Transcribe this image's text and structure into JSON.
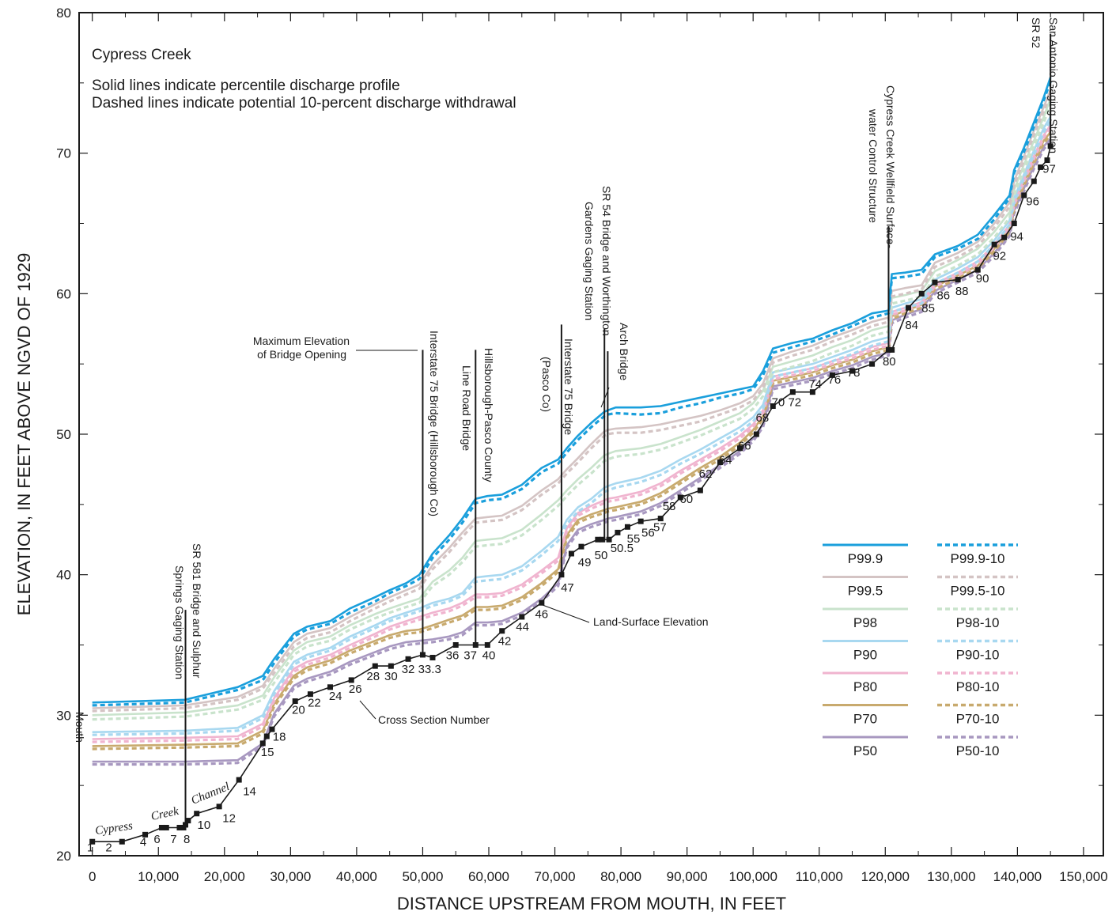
{
  "chart_data": {
    "type": "line",
    "title": "Cypress Creek",
    "notes": [
      "Solid lines indicate percentile discharge profile",
      "Dashed lines indicate potential 10-percent discharge withdrawal"
    ],
    "xlabel": "DISTANCE UPSTREAM FROM MOUTH, IN FEET",
    "ylabel": "ELEVATION, IN FEET ABOVE NGVD OF 1929",
    "xlim": [
      -2000,
      153000
    ],
    "ylim": [
      20,
      80
    ],
    "x_ticks": [
      0,
      10000,
      20000,
      30000,
      40000,
      50000,
      60000,
      70000,
      80000,
      90000,
      100000,
      110000,
      120000,
      130000,
      140000,
      150000
    ],
    "x_tick_labels": [
      "0",
      "10,000",
      "20,000",
      "30,000",
      "40,000",
      "50,000",
      "60,000",
      "70,000",
      "80,000",
      "90,000",
      "100,000",
      "110,000",
      "120,000",
      "130,000",
      "140,000",
      "150,000"
    ],
    "y_ticks": [
      20,
      30,
      40,
      50,
      60,
      70,
      80
    ],
    "y_tick_labels": [
      "20",
      "30",
      "40",
      "50",
      "60",
      "70",
      "80"
    ],
    "grid": false,
    "legend_position": "right",
    "land_surface": {
      "name": "Land-Surface Elevation",
      "x": [
        0,
        4500,
        8000,
        10500,
        11200,
        13200,
        13800,
        14100,
        14500,
        15800,
        19200,
        22200,
        25800,
        26400,
        27200,
        30700,
        33000,
        36000,
        39200,
        42800,
        45200,
        47800,
        50000,
        51500,
        55000,
        58000,
        59800,
        62000,
        65000,
        68000,
        71000,
        72500,
        74000,
        76500,
        77200,
        78200,
        79500,
        81000,
        83000,
        86000,
        89000,
        92000,
        95000,
        98000,
        100500,
        103000,
        106000,
        109000,
        112000,
        115000,
        118000,
        120500,
        121000,
        123500,
        125500,
        127500,
        131000,
        134000,
        136500,
        138000,
        139500,
        141000,
        142500,
        143500,
        144500,
        145000
      ],
      "y": [
        21,
        21,
        21.5,
        22,
        22,
        22,
        22,
        22.2,
        22.5,
        23,
        23.5,
        25.4,
        28,
        28.5,
        29,
        31,
        31.5,
        32,
        32.5,
        33.5,
        33.5,
        34,
        34.3,
        34.1,
        35,
        35,
        35,
        36,
        37,
        38,
        40,
        41.5,
        42,
        42.5,
        42.5,
        42.5,
        43,
        43.4,
        43.8,
        44,
        45.5,
        46,
        48,
        49,
        50,
        52,
        53,
        53,
        54.2,
        54.5,
        55,
        56,
        56,
        59,
        60,
        60.8,
        61,
        61.7,
        63.5,
        64,
        65,
        67,
        68,
        69,
        69.5,
        70.5
      ]
    },
    "cross_section_labels": [
      "1",
      "2",
      "4",
      "6",
      "7",
      "8",
      "10",
      "12",
      "14",
      "15",
      "18",
      "20",
      "22",
      "24",
      "26",
      "28",
      "30",
      "32",
      "33.3",
      "36",
      "37",
      "40",
      "42",
      "44",
      "46",
      "47",
      "49",
      "50",
      "50.5",
      "55",
      "56",
      "57",
      "58",
      "60",
      "62",
      "64",
      "66",
      "68",
      "70",
      "72",
      "74",
      "76",
      "78",
      "80",
      "84",
      "85",
      "86",
      "88",
      "90",
      "92",
      "94",
      "96",
      "97"
    ],
    "profile_x": [
      0,
      14000,
      22000,
      25800,
      27500,
      30500,
      32500,
      36000,
      39000,
      42800,
      45000,
      47500,
      49500,
      51500,
      54000,
      56000,
      58000,
      59800,
      62000,
      65000,
      68000,
      70500,
      71800,
      73500,
      75500,
      77500,
      78000,
      79200,
      83000,
      86000,
      89000,
      92000,
      95000,
      98000,
      100000,
      101500,
      103000,
      106000,
      109000,
      112000,
      115000,
      118000,
      120500,
      121000,
      123000,
      125500,
      127500,
      131000,
      134000,
      136500,
      138800,
      139500,
      141000,
      142500,
      144000,
      145000
    ],
    "series": [
      {
        "name": "P99.9",
        "color": "#1a9fdc",
        "style": "solid",
        "values": [
          30.9,
          31.1,
          32,
          32.8,
          34,
          35.8,
          36.3,
          36.7,
          37.6,
          38.4,
          38.9,
          39.4,
          40.0,
          41.5,
          42.8,
          44.0,
          45.4,
          45.6,
          45.7,
          46.4,
          47.6,
          48.2,
          49.0,
          49.9,
          50.8,
          51.6,
          51.7,
          51.9,
          51.9,
          52.0,
          52.3,
          52.6,
          52.9,
          53.2,
          53.4,
          54.5,
          56.1,
          56.5,
          56.8,
          57.4,
          57.9,
          58.6,
          58.8,
          61.4,
          61.5,
          61.7,
          62.8,
          63.4,
          64.2,
          65.6,
          67.0,
          68.8,
          70.4,
          72.2,
          74.0,
          75.4
        ]
      },
      {
        "name": "P99.9-10",
        "color": "#1a9fdc",
        "style": "dashed",
        "values": [
          30.7,
          30.9,
          31.8,
          32.5,
          33.7,
          35.6,
          36.1,
          36.5,
          37.3,
          38.1,
          38.7,
          39.2,
          39.7,
          41.2,
          42.5,
          43.7,
          45.1,
          45.3,
          45.4,
          46.1,
          47.3,
          47.9,
          48.7,
          49.6,
          50.5,
          51.3,
          51.4,
          51.5,
          51.4,
          51.5,
          51.9,
          52.2,
          52.6,
          52.9,
          53.2,
          54.2,
          55.8,
          56.2,
          56.6,
          57.1,
          57.7,
          58.3,
          58.6,
          61.1,
          61.2,
          61.4,
          62.6,
          63.2,
          63.9,
          65.3,
          66.8,
          68.6,
          70.1,
          71.9,
          73.8,
          75.1
        ]
      },
      {
        "name": "P99.5",
        "color": "#d4c4c4",
        "style": "solid",
        "values": [
          30.5,
          30.7,
          31.3,
          32.1,
          33.3,
          35.2,
          35.8,
          36.2,
          37.0,
          37.9,
          38.4,
          38.9,
          39.3,
          40.7,
          41.9,
          43.0,
          44.0,
          44.1,
          44.2,
          44.9,
          46.0,
          46.8,
          47.5,
          48.3,
          49.3,
          50.2,
          50.3,
          50.4,
          50.5,
          50.7,
          51.0,
          51.3,
          51.7,
          52.2,
          52.7,
          53.6,
          55.4,
          55.9,
          56.3,
          56.9,
          57.4,
          58.0,
          58.3,
          60.2,
          60.4,
          60.6,
          62.2,
          62.9,
          63.7,
          65.0,
          66.5,
          68.0,
          69.8,
          71.6,
          73.3,
          74.5
        ]
      },
      {
        "name": "P99.5-10",
        "color": "#d4c4c4",
        "style": "dashed",
        "values": [
          30.3,
          30.5,
          31.1,
          31.9,
          33.0,
          34.9,
          35.5,
          35.9,
          36.7,
          37.6,
          38.1,
          38.6,
          39.0,
          40.4,
          41.6,
          42.7,
          43.7,
          43.8,
          43.9,
          44.6,
          45.7,
          46.5,
          47.2,
          48.0,
          49.0,
          49.9,
          50.0,
          50.1,
          50.1,
          50.3,
          50.6,
          50.9,
          51.4,
          51.9,
          52.4,
          53.3,
          55.1,
          55.6,
          56.0,
          56.6,
          57.1,
          57.7,
          58.0,
          59.8,
          60.0,
          60.3,
          61.9,
          62.6,
          63.4,
          64.7,
          66.2,
          67.7,
          69.5,
          71.3,
          73.0,
          74.2
        ]
      },
      {
        "name": "P98",
        "color": "#c9e3cc",
        "style": "solid",
        "values": [
          30.0,
          30.2,
          30.7,
          31.4,
          32.7,
          34.6,
          35.2,
          35.6,
          36.4,
          37.2,
          37.6,
          38.0,
          38.3,
          39.5,
          40.3,
          41.2,
          42.4,
          42.5,
          42.6,
          43.2,
          44.3,
          45.3,
          46.0,
          46.8,
          47.6,
          48.5,
          48.6,
          48.8,
          49.0,
          49.3,
          49.8,
          50.3,
          50.9,
          51.5,
          52.2,
          53.1,
          54.8,
          55.2,
          55.6,
          56.2,
          56.7,
          57.4,
          57.7,
          59.7,
          59.9,
          60.2,
          61.6,
          62.4,
          63.2,
          64.4,
          65.8,
          67.4,
          69.2,
          70.9,
          72.6,
          73.9
        ]
      },
      {
        "name": "P98-10",
        "color": "#c9e3cc",
        "style": "dashed",
        "values": [
          29.7,
          29.9,
          30.4,
          31.1,
          32.3,
          34.3,
          34.9,
          35.3,
          36.1,
          36.9,
          37.3,
          37.7,
          38.0,
          39.2,
          40.0,
          40.9,
          42.0,
          42.1,
          42.2,
          42.8,
          43.9,
          44.9,
          45.6,
          46.4,
          47.2,
          48.1,
          48.2,
          48.4,
          48.6,
          48.9,
          49.4,
          49.9,
          50.5,
          51.1,
          51.8,
          52.7,
          54.4,
          54.8,
          55.2,
          55.8,
          56.3,
          57.0,
          57.3,
          59.3,
          59.5,
          59.8,
          61.2,
          62.0,
          62.8,
          64.0,
          65.4,
          67.0,
          68.8,
          70.5,
          72.2,
          73.5
        ]
      },
      {
        "name": "P90",
        "color": "#a8d8f0",
        "style": "solid",
        "values": [
          28.8,
          28.9,
          29.1,
          30.0,
          31.7,
          33.8,
          34.3,
          34.8,
          35.6,
          36.4,
          36.9,
          37.3,
          37.6,
          38.0,
          38.3,
          38.7,
          39.8,
          39.9,
          40.0,
          40.6,
          41.7,
          42.7,
          43.9,
          44.8,
          45.4,
          46.2,
          46.3,
          46.5,
          46.9,
          47.4,
          48.2,
          48.9,
          49.7,
          50.5,
          51.2,
          52.1,
          54.4,
          54.7,
          55.0,
          55.5,
          56.0,
          56.6,
          56.9,
          59.0,
          59.3,
          59.6,
          61.0,
          61.8,
          62.6,
          63.8,
          65.2,
          66.8,
          68.5,
          70.2,
          71.8,
          72.6
        ]
      },
      {
        "name": "P90-10",
        "color": "#a8d8f0",
        "style": "dashed",
        "values": [
          28.6,
          28.7,
          28.9,
          29.8,
          31.5,
          33.6,
          34.1,
          34.6,
          35.4,
          36.2,
          36.7,
          37.1,
          37.4,
          37.8,
          38.1,
          38.5,
          39.5,
          39.6,
          39.7,
          40.3,
          41.4,
          42.4,
          43.6,
          44.5,
          45.1,
          45.9,
          46.0,
          46.2,
          46.6,
          47.1,
          47.9,
          48.6,
          49.4,
          50.2,
          50.9,
          51.8,
          54.1,
          54.4,
          54.7,
          55.2,
          55.7,
          56.3,
          56.6,
          58.7,
          59.0,
          59.3,
          60.7,
          61.5,
          62.3,
          63.5,
          64.9,
          66.5,
          68.2,
          69.9,
          71.5,
          72.3
        ]
      },
      {
        "name": "P80",
        "color": "#f0b4cf",
        "style": "solid",
        "values": [
          28.3,
          28.4,
          28.5,
          29.4,
          31.2,
          33.3,
          33.8,
          34.3,
          35.0,
          35.8,
          36.3,
          36.7,
          37.0,
          37.3,
          37.6,
          38.0,
          38.6,
          38.6,
          38.7,
          39.3,
          40.3,
          41.2,
          43.3,
          44.4,
          44.9,
          45.3,
          45.4,
          45.5,
          45.9,
          46.5,
          47.4,
          48.2,
          49.0,
          49.9,
          50.7,
          51.7,
          54.1,
          54.4,
          54.7,
          55.2,
          55.6,
          56.2,
          56.5,
          58.7,
          59.0,
          59.4,
          60.7,
          61.5,
          62.3,
          63.5,
          64.9,
          66.5,
          68.2,
          69.8,
          71.3,
          72.0
        ]
      },
      {
        "name": "P80-10",
        "color": "#f0b4cf",
        "style": "dashed",
        "values": [
          28.1,
          28.2,
          28.3,
          29.2,
          31.0,
          33.1,
          33.6,
          34.1,
          34.8,
          35.6,
          36.1,
          36.5,
          36.8,
          37.1,
          37.4,
          37.8,
          38.4,
          38.4,
          38.5,
          39.1,
          40.1,
          41.0,
          43.1,
          44.2,
          44.7,
          45.1,
          45.2,
          45.3,
          45.7,
          46.3,
          47.2,
          48.0,
          48.8,
          49.7,
          50.5,
          51.5,
          53.9,
          54.2,
          54.5,
          55.0,
          55.4,
          56.0,
          56.3,
          58.5,
          58.8,
          59.2,
          60.5,
          61.3,
          62.1,
          63.3,
          64.7,
          66.3,
          68.0,
          69.6,
          71.1,
          71.8
        ]
      },
      {
        "name": "P70",
        "color": "#c8aa6e",
        "style": "solid",
        "values": [
          27.8,
          27.9,
          28.0,
          28.9,
          30.8,
          32.8,
          33.4,
          33.9,
          34.6,
          35.3,
          35.7,
          36.0,
          36.1,
          36.4,
          36.8,
          37.1,
          37.7,
          37.7,
          37.8,
          38.4,
          39.4,
          40.4,
          42.8,
          43.9,
          44.3,
          44.6,
          44.7,
          44.8,
          45.2,
          45.8,
          46.7,
          47.6,
          48.4,
          49.4,
          50.3,
          51.3,
          53.8,
          54.1,
          54.4,
          54.9,
          55.3,
          55.9,
          56.2,
          58.4,
          58.8,
          59.2,
          60.5,
          61.3,
          62.0,
          63.2,
          64.6,
          66.2,
          67.9,
          69.5,
          70.9,
          71.5
        ]
      },
      {
        "name": "P70-10",
        "color": "#c8aa6e",
        "style": "dashed",
        "values": [
          27.6,
          27.7,
          27.8,
          28.7,
          30.6,
          32.6,
          33.2,
          33.7,
          34.4,
          35.1,
          35.5,
          35.8,
          35.9,
          36.2,
          36.6,
          36.9,
          37.5,
          37.5,
          37.6,
          38.2,
          39.2,
          40.2,
          42.6,
          43.7,
          44.1,
          44.4,
          44.5,
          44.6,
          45.0,
          45.6,
          46.5,
          47.4,
          48.2,
          49.2,
          50.1,
          51.1,
          53.6,
          53.9,
          54.2,
          54.7,
          55.1,
          55.7,
          56.0,
          58.2,
          58.6,
          59.0,
          60.3,
          61.1,
          61.8,
          63.0,
          64.4,
          66.0,
          67.7,
          69.3,
          70.7,
          71.3
        ]
      },
      {
        "name": "P50",
        "color": "#a898c0",
        "style": "solid",
        "values": [
          26.7,
          26.7,
          26.8,
          28.0,
          30.1,
          32.1,
          32.6,
          33.1,
          33.8,
          34.5,
          34.9,
          35.2,
          35.3,
          35.4,
          35.6,
          35.9,
          36.6,
          36.6,
          36.7,
          37.3,
          38.3,
          39.4,
          42.1,
          43.2,
          43.6,
          43.9,
          44.0,
          44.1,
          44.5,
          45.1,
          46.0,
          46.9,
          47.8,
          48.8,
          49.7,
          50.7,
          53.4,
          53.7,
          54.0,
          54.5,
          54.9,
          55.5,
          55.8,
          58.1,
          58.5,
          58.9,
          60.2,
          61.0,
          61.7,
          62.9,
          64.3,
          65.9,
          67.5,
          69.1,
          70.5,
          71.0
        ]
      },
      {
        "name": "P50-10",
        "color": "#a898c0",
        "style": "dashed",
        "values": [
          26.5,
          26.5,
          26.6,
          27.8,
          29.9,
          31.9,
          32.4,
          32.9,
          33.6,
          34.3,
          34.7,
          35.0,
          35.1,
          35.2,
          35.4,
          35.7,
          36.4,
          36.4,
          36.5,
          37.1,
          38.1,
          39.2,
          41.9,
          43.0,
          43.4,
          43.7,
          43.8,
          43.9,
          44.3,
          44.9,
          45.8,
          46.7,
          47.6,
          48.6,
          49.5,
          50.5,
          53.2,
          53.5,
          53.8,
          54.3,
          54.7,
          55.3,
          55.6,
          57.9,
          58.3,
          58.7,
          60.0,
          60.8,
          61.5,
          62.7,
          64.1,
          65.7,
          67.3,
          68.9,
          70.3,
          70.8
        ]
      }
    ],
    "annotations": {
      "mouth": "Mouth",
      "channel_words": [
        "Cypress",
        "Creek",
        "Channel"
      ],
      "max_elev": "Maximum Elevation",
      "max_elev_2": "of Bridge Opening",
      "land_surface": "Land-Surface Elevation",
      "cross_section": "Cross Section Number",
      "sr581_1": "SR 581 Bridge and Sulphur",
      "sr581_2": "Springs Gaging Station",
      "i75h": "Interstate 75 Bridge (Hillsborough Co)",
      "hpl_1": "Hillsborough-Pasco County",
      "hpl_2": "Line  Road Bridge",
      "i75p_1": "Interstate 75 Bridge",
      "i75p_2": "(Pasco Co)",
      "sr54_1": "SR 54 Bridge and Worthington",
      "sr54_2": "Gardens Gaging Station",
      "arch": "Arch Bridge",
      "cwf_1": "Cypress Creek Wellfield Surface-",
      "cwf_2": "water Control  Structure",
      "sa_1": "San Antonio Gaging Station",
      "sa_2": "SR 52"
    }
  }
}
